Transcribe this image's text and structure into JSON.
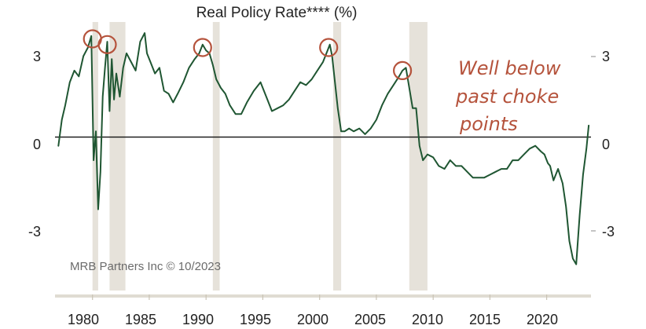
{
  "chart_data": {
    "type": "line",
    "title": "Real Policy Rate**** (%)",
    "xlabel": "",
    "ylabel": "",
    "xlim": [
      1976.7,
      2023.9
    ],
    "ylim": [
      -4.9,
      4.2
    ],
    "y_ticks": [
      3,
      0,
      -3
    ],
    "y_tick_labels": [
      "3",
      "0",
      "-3"
    ],
    "x_ticks": [
      1980,
      1985,
      1990,
      1995,
      2000,
      2005,
      2010,
      2015,
      2020
    ],
    "x_tick_labels": [
      "1980",
      "1985",
      "1990",
      "1995",
      "2000",
      "2005",
      "2010",
      "2015",
      "2020"
    ],
    "reference_line": 0,
    "recessions": [
      [
        1980.0,
        1980.5
      ],
      [
        1981.5,
        1982.9
      ],
      [
        1990.6,
        1991.2
      ],
      [
        2001.2,
        2001.9
      ],
      [
        2007.9,
        2009.5
      ]
    ],
    "choke_points": [
      [
        1980.0,
        3.4
      ],
      [
        1981.3,
        3.2
      ],
      [
        1989.7,
        3.1
      ],
      [
        2000.8,
        3.1
      ],
      [
        2007.3,
        2.3
      ]
    ],
    "annotation": [
      "Well below",
      "past choke",
      "points"
    ],
    "credit": "MRB Partners Inc © 10/2023",
    "series": [
      {
        "name": "Real Policy Rate",
        "color": "#1f5632",
        "x": [
          1977.0,
          1977.3,
          1977.6,
          1978.0,
          1978.4,
          1978.8,
          1979.2,
          1979.6,
          1979.9,
          1980.1,
          1980.3,
          1980.5,
          1980.7,
          1980.9,
          1981.1,
          1981.3,
          1981.5,
          1981.7,
          1981.9,
          1982.1,
          1982.4,
          1982.7,
          1983.0,
          1983.4,
          1983.8,
          1984.2,
          1984.6,
          1984.8,
          1985.1,
          1985.5,
          1985.9,
          1986.3,
          1986.7,
          1987.1,
          1987.5,
          1988.0,
          1988.5,
          1989.0,
          1989.4,
          1989.7,
          1990.0,
          1990.3,
          1990.6,
          1990.9,
          1991.3,
          1991.7,
          1992.1,
          1992.6,
          1993.1,
          1993.6,
          1994.2,
          1994.8,
          1995.3,
          1995.8,
          1996.3,
          1996.8,
          1997.3,
          1997.8,
          1998.3,
          1998.8,
          1999.3,
          1999.8,
          2000.3,
          2000.7,
          2000.9,
          2001.1,
          2001.3,
          2001.6,
          2001.9,
          2002.2,
          2002.6,
          2003.0,
          2003.5,
          2004.0,
          2004.5,
          2005.0,
          2005.5,
          2006.0,
          2006.5,
          2007.0,
          2007.3,
          2007.6,
          2007.9,
          2008.2,
          2008.5,
          2008.8,
          2009.1,
          2009.5,
          2010.0,
          2010.5,
          2011.0,
          2011.5,
          2012.0,
          2012.5,
          2013.0,
          2013.5,
          2014.0,
          2014.5,
          2015.0,
          2015.5,
          2016.0,
          2016.5,
          2017.0,
          2017.5,
          2018.0,
          2018.5,
          2019.0,
          2019.5,
          2019.8,
          2020.1,
          2020.3,
          2020.6,
          2021.0,
          2021.4,
          2021.7,
          2022.0,
          2022.3,
          2022.6,
          2022.9,
          2023.2,
          2023.5,
          2023.7
        ],
        "y": [
          -0.3,
          0.6,
          1.1,
          1.9,
          2.3,
          2.1,
          2.8,
          3.1,
          3.5,
          -0.8,
          0.2,
          -2.5,
          -1.2,
          1.4,
          2.4,
          3.3,
          0.9,
          2.7,
          1.3,
          2.2,
          1.4,
          2.4,
          2.9,
          2.6,
          2.3,
          3.3,
          3.6,
          2.9,
          2.6,
          2.2,
          2.4,
          1.6,
          1.5,
          1.2,
          1.5,
          1.9,
          2.4,
          2.7,
          2.9,
          3.2,
          3.0,
          2.9,
          2.5,
          2.0,
          1.7,
          1.5,
          1.1,
          0.8,
          0.8,
          1.2,
          1.6,
          1.9,
          1.4,
          0.9,
          1.0,
          1.1,
          1.3,
          1.6,
          1.9,
          1.8,
          2.0,
          2.3,
          2.6,
          3.0,
          3.2,
          2.8,
          2.1,
          1.0,
          0.2,
          0.2,
          0.3,
          0.2,
          0.3,
          0.1,
          0.3,
          0.6,
          1.1,
          1.5,
          1.8,
          2.1,
          2.3,
          2.4,
          1.7,
          1.0,
          1.0,
          -0.3,
          -0.8,
          -0.6,
          -0.7,
          -1.0,
          -1.1,
          -0.8,
          -1.0,
          -1.0,
          -1.2,
          -1.4,
          -1.4,
          -1.4,
          -1.3,
          -1.2,
          -1.1,
          -1.1,
          -0.8,
          -0.8,
          -0.6,
          -0.4,
          -0.3,
          -0.5,
          -0.6,
          -0.9,
          -1.0,
          -1.5,
          -1.1,
          -1.6,
          -2.4,
          -3.6,
          -4.2,
          -4.4,
          -2.7,
          -1.3,
          -0.4,
          0.4
        ]
      }
    ]
  }
}
